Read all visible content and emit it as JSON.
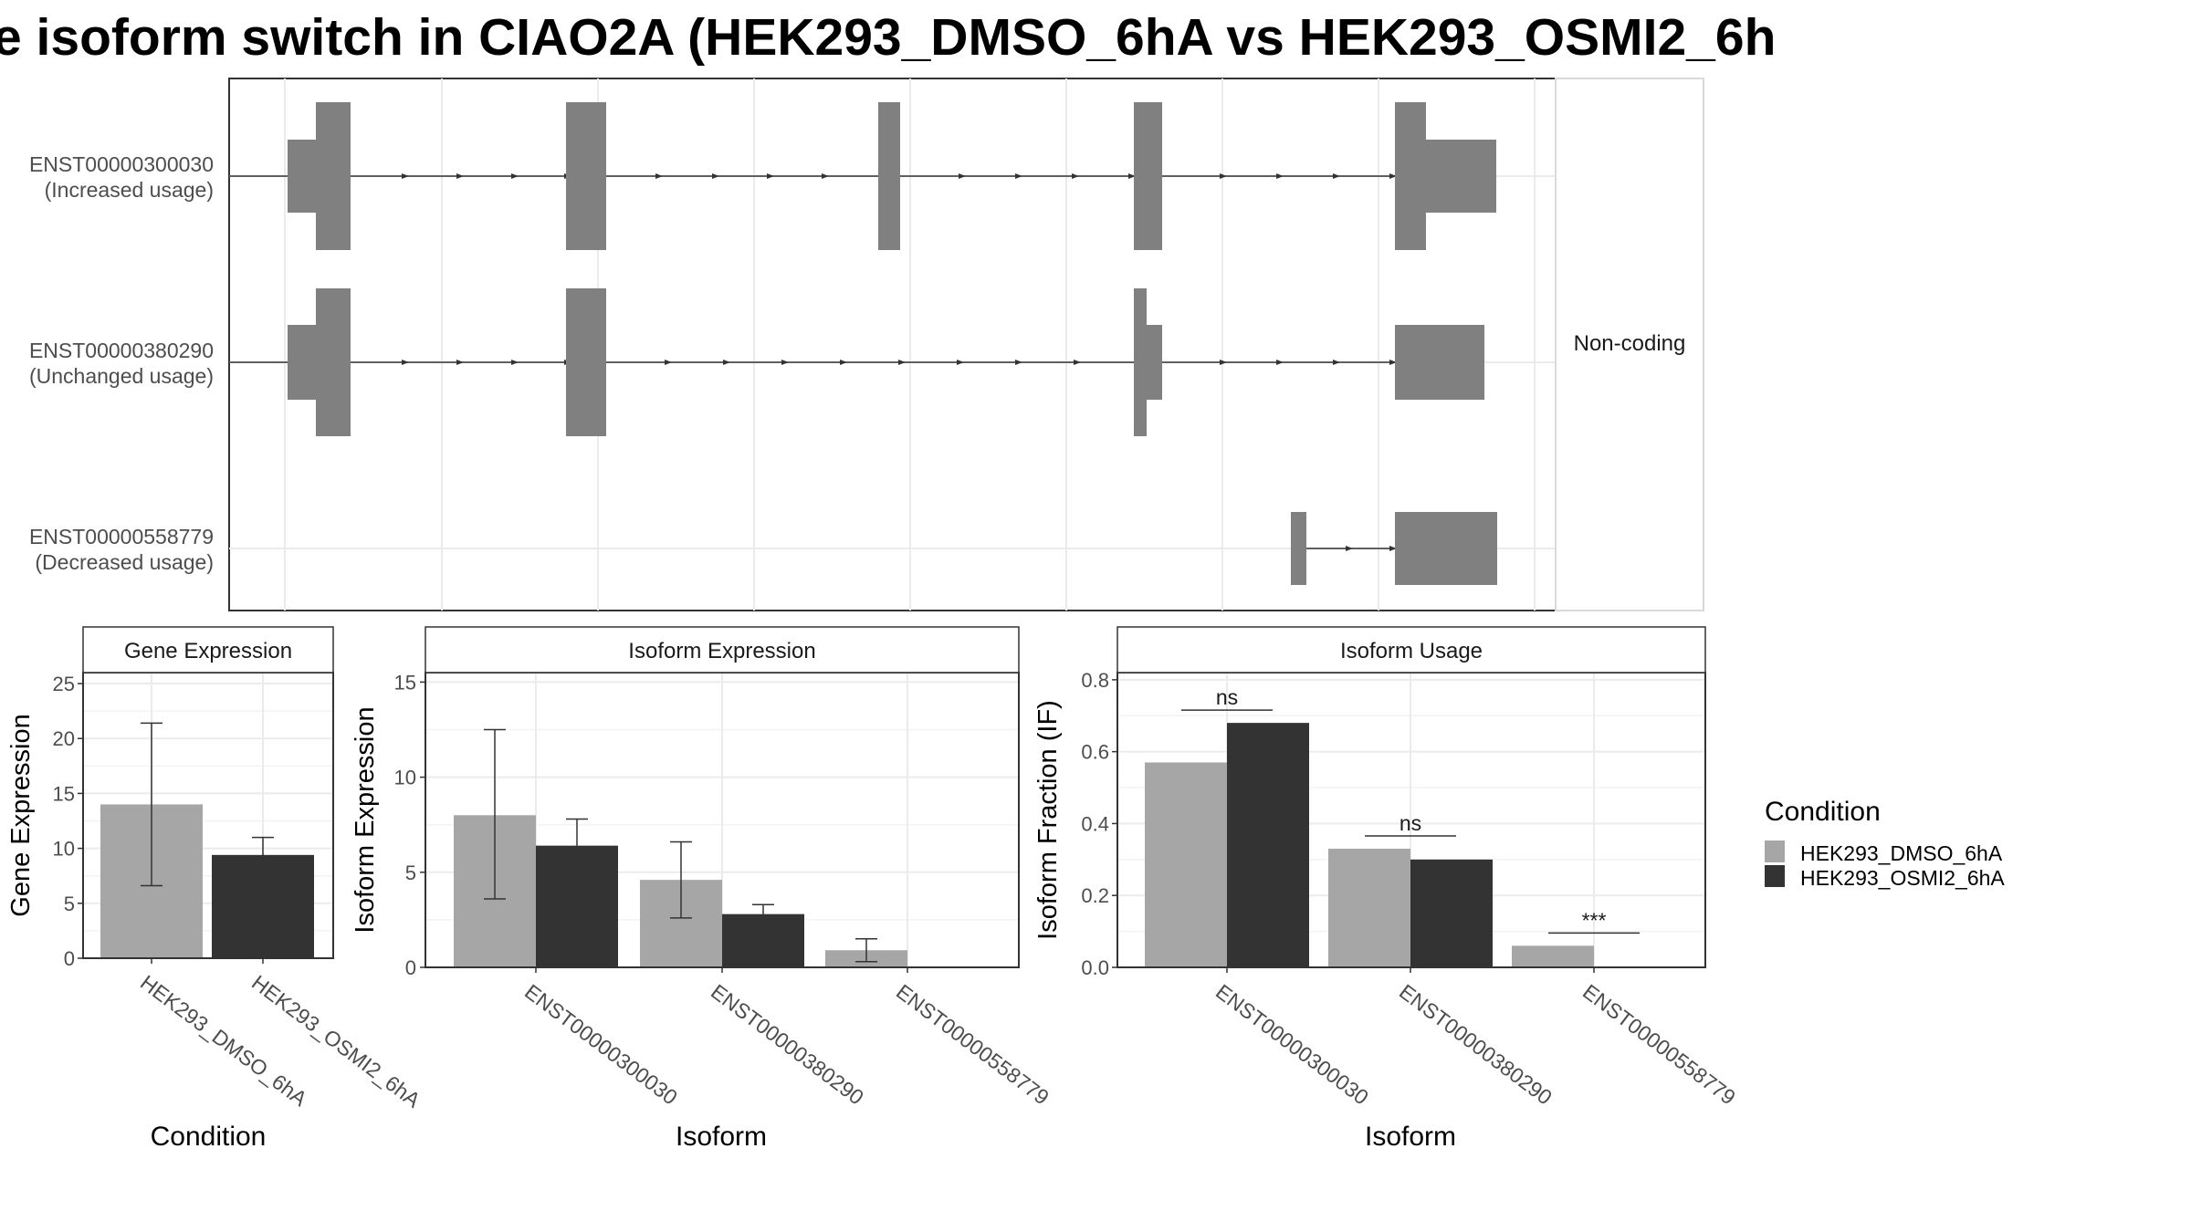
{
  "title": "e isoform switch in CIAO2A (HEK293_DMSO_6hA vs HEK293_OSMI2_6h",
  "structure": {
    "facet_label": "Non-coding",
    "isoforms": [
      {
        "id": "ENST00000300030",
        "usage": "(Increased usage)"
      },
      {
        "id": "ENST00000380290",
        "usage": "(Unchanged usage)"
      },
      {
        "id": "ENST00000558779",
        "usage": "(Decreased usage)"
      }
    ]
  },
  "colors": {
    "dmso": "#a6a6a6",
    "osmi2": "#333333",
    "exon": "#808080",
    "grid": "#ebebeb"
  },
  "legend": {
    "title": "Condition",
    "items": [
      {
        "label": "HEK293_DMSO_6hA",
        "color": "#a6a6a6"
      },
      {
        "label": "HEK293_OSMI2_6hA",
        "color": "#333333"
      }
    ]
  },
  "chart_data": [
    {
      "type": "bar",
      "title": "Gene Expression",
      "xlabel": "Condition",
      "ylabel": "Gene Expression",
      "ylim": [
        0,
        26
      ],
      "yticks": [
        0,
        5,
        10,
        15,
        20,
        25
      ],
      "categories": [
        "HEK293_DMSO_6hA",
        "HEK293_OSMI2_6hA"
      ],
      "values": [
        14.0,
        9.4
      ],
      "errors": [
        [
          6.6,
          21.4
        ],
        [
          8.0,
          11.0
        ]
      ]
    },
    {
      "type": "bar",
      "title": "Isoform Expression",
      "xlabel": "Isoform",
      "ylabel": "Isoform Expression",
      "ylim": [
        0,
        15.5
      ],
      "yticks": [
        0,
        5,
        10,
        15
      ],
      "categories": [
        "ENST00000300030",
        "ENST00000380290",
        "ENST00000558779"
      ],
      "series": [
        {
          "name": "HEK293_DMSO_6hA",
          "values": [
            8.0,
            4.6,
            0.9
          ],
          "errors": [
            [
              3.6,
              12.5
            ],
            [
              2.6,
              6.6
            ],
            [
              0.3,
              1.5
            ]
          ]
        },
        {
          "name": "HEK293_OSMI2_6hA",
          "values": [
            6.4,
            2.8,
            0.0
          ],
          "errors": [
            [
              5.0,
              7.8
            ],
            [
              2.3,
              3.3
            ],
            [
              0.0,
              0.0
            ]
          ]
        }
      ]
    },
    {
      "type": "bar",
      "title": "Isoform Usage",
      "xlabel": "Isoform",
      "ylabel": "Isoform Fraction (IF)",
      "ylim": [
        0,
        0.82
      ],
      "yticks": [
        "0.0",
        "0.2",
        "0.4",
        "0.6",
        "0.8"
      ],
      "categories": [
        "ENST00000300030",
        "ENST00000380290",
        "ENST00000558779"
      ],
      "series": [
        {
          "name": "HEK293_DMSO_6hA",
          "values": [
            0.57,
            0.33,
            0.06
          ]
        },
        {
          "name": "HEK293_OSMI2_6hA",
          "values": [
            0.68,
            0.3,
            0.0
          ]
        }
      ],
      "significance": [
        "ns",
        "ns",
        "***"
      ]
    }
  ]
}
